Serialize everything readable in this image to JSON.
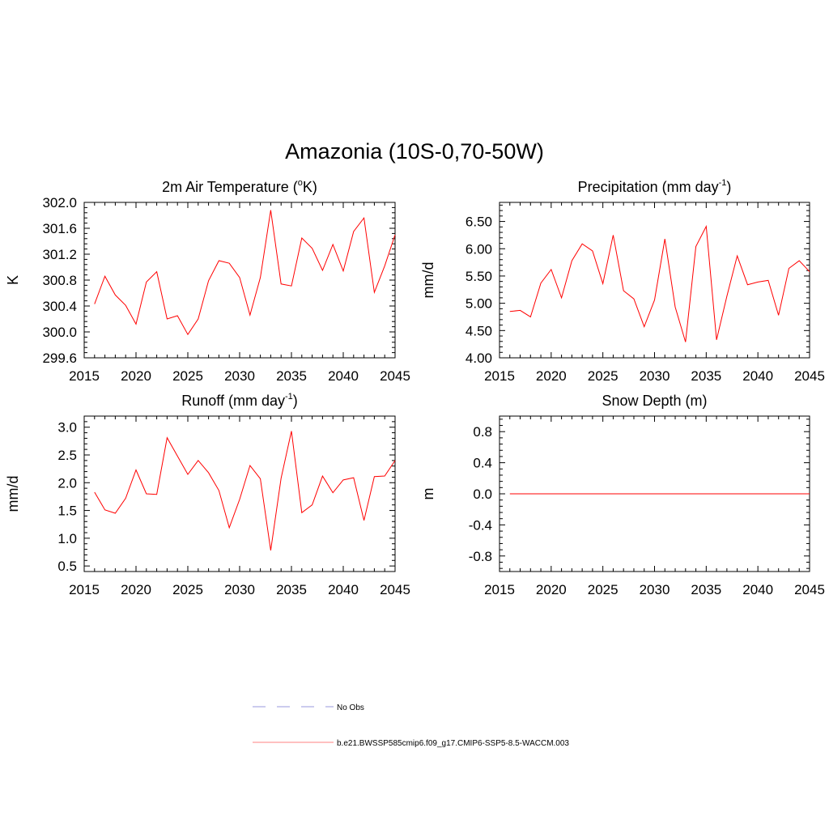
{
  "figure": {
    "title": "Amazonia (10S-0,70-50W)"
  },
  "chart_data": [
    {
      "type": "line",
      "title": "2m Air Temperature (",
      "title_sup": "o",
      "title_after": "K)",
      "ylabel": "K",
      "xlim": [
        2015,
        2045
      ],
      "ylim": [
        299.6,
        302.0
      ],
      "x_ticks": [
        "2015",
        "2020",
        "2025",
        "2030",
        "2035",
        "2040",
        "2045"
      ],
      "y_ticks": [
        "299.6",
        "300.0",
        "300.4",
        "300.8",
        "301.2",
        "301.6",
        "302.0"
      ],
      "series": [
        {
          "color": "#ff0000",
          "x": [
            2016,
            2017,
            2018,
            2019,
            2020,
            2021,
            2022,
            2023,
            2024,
            2025,
            2026,
            2027,
            2028,
            2029,
            2030,
            2031,
            2032,
            2033,
            2034,
            2035,
            2036,
            2037,
            2038,
            2039,
            2040,
            2041,
            2042,
            2043,
            2044,
            2045
          ],
          "values": [
            300.43,
            300.86,
            300.57,
            300.41,
            300.12,
            300.77,
            300.93,
            300.2,
            300.25,
            299.96,
            300.2,
            300.79,
            301.1,
            301.06,
            300.84,
            300.26,
            300.84,
            301.88,
            300.74,
            300.71,
            301.45,
            301.29,
            300.95,
            301.35,
            300.94,
            301.55,
            301.76,
            300.61,
            301.02,
            301.5
          ]
        }
      ]
    },
    {
      "type": "line",
      "title": "Precipitation (mm day",
      "title_sup": "-1",
      "title_after": ")",
      "ylabel": "mm/d",
      "xlim": [
        2015,
        2045
      ],
      "ylim": [
        4.0,
        6.85
      ],
      "x_ticks": [
        "2015",
        "2020",
        "2025",
        "2030",
        "2035",
        "2040",
        "2045"
      ],
      "y_ticks": [
        "4.00",
        "4.50",
        "5.00",
        "5.50",
        "6.00",
        "6.50"
      ],
      "series": [
        {
          "color": "#ff0000",
          "x": [
            2016,
            2017,
            2018,
            2019,
            2020,
            2021,
            2022,
            2023,
            2024,
            2025,
            2026,
            2027,
            2028,
            2029,
            2030,
            2031,
            2032,
            2033,
            2034,
            2035,
            2036,
            2037,
            2038,
            2039,
            2040,
            2041,
            2042,
            2043,
            2044,
            2045
          ],
          "values": [
            4.85,
            4.87,
            4.75,
            5.37,
            5.62,
            5.1,
            5.78,
            6.09,
            5.96,
            5.36,
            6.25,
            5.23,
            5.08,
            4.57,
            5.06,
            6.18,
            4.93,
            4.29,
            6.04,
            6.41,
            4.33,
            5.13,
            5.87,
            5.34,
            5.39,
            5.42,
            4.78,
            5.64,
            5.78,
            5.58
          ]
        }
      ]
    },
    {
      "type": "line",
      "title": "Runoff (mm day",
      "title_sup": "-1",
      "title_after": ")",
      "ylabel": "mm/d",
      "xlim": [
        2015,
        2045
      ],
      "ylim": [
        0.4,
        3.2
      ],
      "x_ticks": [
        "2015",
        "2020",
        "2025",
        "2030",
        "2035",
        "2040",
        "2045"
      ],
      "y_ticks": [
        "0.5",
        "1.0",
        "1.5",
        "2.0",
        "2.5",
        "3.0"
      ],
      "series": [
        {
          "color": "#ff0000",
          "x": [
            2016,
            2017,
            2018,
            2019,
            2020,
            2021,
            2022,
            2023,
            2024,
            2025,
            2026,
            2027,
            2028,
            2029,
            2030,
            2031,
            2032,
            2033,
            2034,
            2035,
            2036,
            2037,
            2038,
            2039,
            2040,
            2041,
            2042,
            2043,
            2044,
            2045
          ],
          "values": [
            1.83,
            1.51,
            1.45,
            1.72,
            2.23,
            1.8,
            1.79,
            2.81,
            2.48,
            2.15,
            2.4,
            2.18,
            1.86,
            1.19,
            1.7,
            2.31,
            2.07,
            0.78,
            2.08,
            2.93,
            1.46,
            1.6,
            2.12,
            1.82,
            2.05,
            2.09,
            1.32,
            2.11,
            2.12,
            2.4
          ]
        }
      ]
    },
    {
      "type": "line",
      "title": "Snow Depth (m)",
      "title_sup": "",
      "title_after": "",
      "ylabel": "m",
      "xlim": [
        2015,
        2045
      ],
      "ylim": [
        -1.0,
        1.0
      ],
      "x_ticks": [
        "2015",
        "2020",
        "2025",
        "2030",
        "2035",
        "2040",
        "2045"
      ],
      "y_ticks": [
        "-0.8",
        "-0.4",
        "0.0",
        "0.4",
        "0.8"
      ],
      "series": [
        {
          "color": "#ff0000",
          "x": [
            2016,
            2017,
            2018,
            2019,
            2020,
            2021,
            2022,
            2023,
            2024,
            2025,
            2026,
            2027,
            2028,
            2029,
            2030,
            2031,
            2032,
            2033,
            2034,
            2035,
            2036,
            2037,
            2038,
            2039,
            2040,
            2041,
            2042,
            2043,
            2044,
            2045
          ],
          "values": [
            0,
            0,
            0,
            0,
            0,
            0,
            0,
            0,
            0,
            0,
            0,
            0,
            0,
            0,
            0,
            0,
            0,
            0,
            0,
            0,
            0,
            0,
            0,
            0,
            0,
            0,
            0,
            0,
            0,
            0
          ]
        }
      ]
    }
  ],
  "legend": {
    "entries": [
      {
        "label": "No Obs",
        "color": "#9999dd",
        "style": "dashed"
      },
      {
        "label": "b.e21.BWSSP585cmip6.f09_g17.CMIP6-SSP5-8.5-WACCM.003",
        "color": "#ff8080",
        "style": "solid"
      }
    ]
  }
}
